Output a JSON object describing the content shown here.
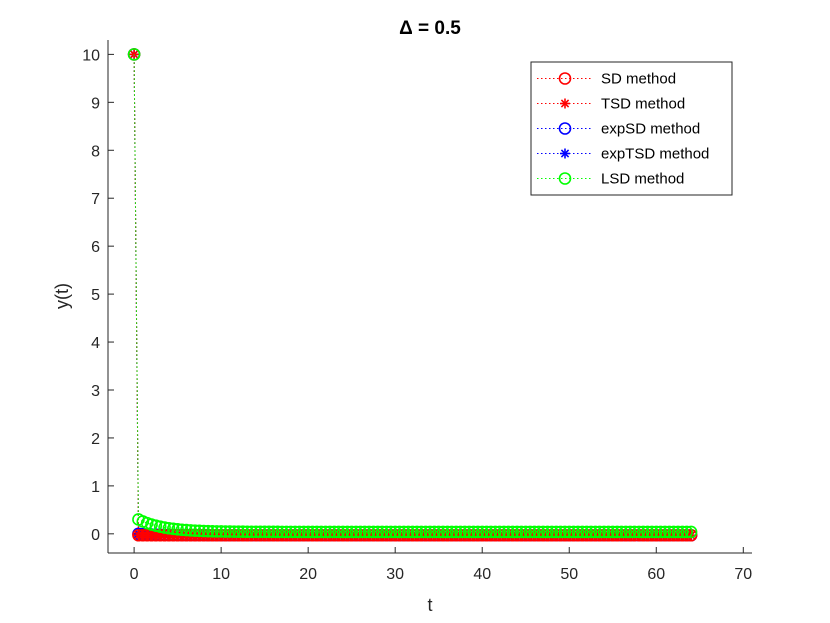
{
  "chart_data": {
    "type": "scatter",
    "title": "Δ = 0.5",
    "xlabel": "t",
    "ylabel": "y(t)",
    "xlim": [
      -3,
      71
    ],
    "ylim": [
      -0.4,
      10.3
    ],
    "xticks": [
      0,
      10,
      20,
      30,
      40,
      50,
      60,
      70
    ],
    "yticks": [
      0,
      1,
      2,
      3,
      4,
      5,
      6,
      7,
      8,
      9,
      10
    ],
    "grid": false,
    "legend_location": "top-right",
    "x": {
      "start": 0,
      "step": 0.5,
      "end": 64
    },
    "series": [
      {
        "name": "SD method",
        "color": "#ff0000",
        "marker": "circle",
        "line": "dotted",
        "start_value": 10,
        "next_value": -0.03,
        "steady_value": -0.03,
        "decay_rate": 0.5
      },
      {
        "name": "TSD method",
        "color": "#ff0000",
        "marker": "star",
        "line": "dotted",
        "start_value": 10,
        "next_value": -0.03,
        "steady_value": -0.03,
        "decay_rate": 0.5
      },
      {
        "name": "expSD method",
        "color": "#0000ff",
        "marker": "circle",
        "line": "dotted",
        "start_value": 10,
        "next_value": 0.0,
        "steady_value": -0.03,
        "decay_rate": 0.5
      },
      {
        "name": "expTSD method",
        "color": "#0000ff",
        "marker": "star",
        "line": "dotted",
        "start_value": 10,
        "next_value": 0.0,
        "steady_value": -0.03,
        "decay_rate": 0.5
      },
      {
        "name": "LSD method",
        "color": "#00ff00",
        "marker": "circle",
        "line": "dotted",
        "start_value": 10,
        "next_value": 0.3,
        "steady_value": 0.04,
        "decay_rate": 0.35
      }
    ]
  }
}
